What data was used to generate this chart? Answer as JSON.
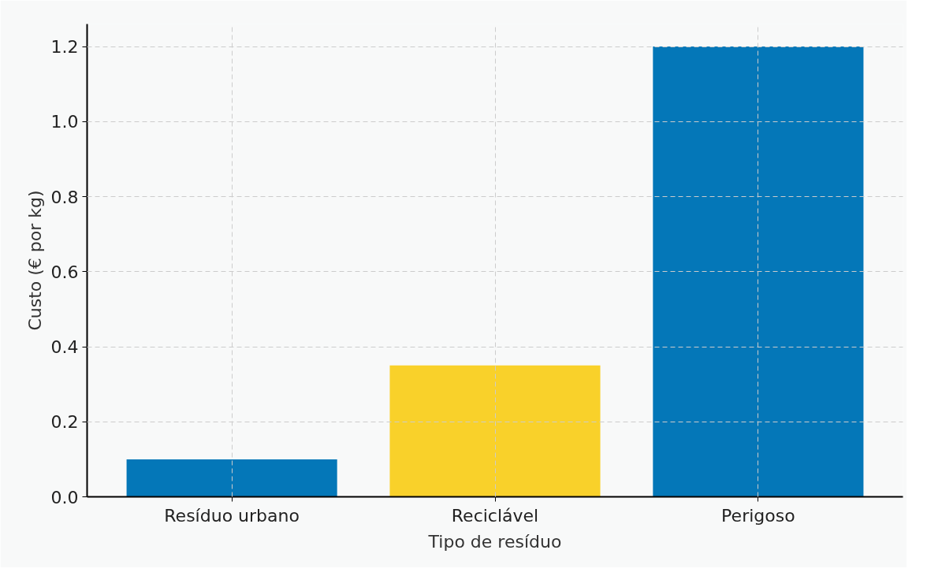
{
  "chart_data": {
    "type": "bar",
    "xlabel": "Tipo de resíduo",
    "ylabel": "Custo (€ por kg)",
    "categories": [
      "Resíduo urbano",
      "Reciclável",
      "Perigoso"
    ],
    "values": [
      0.1,
      0.35,
      1.2
    ],
    "colors": [
      "#0477b8",
      "#f9d12a",
      "#0477b8"
    ],
    "ylim": [
      0,
      1.26
    ],
    "yticks": [
      {
        "value": 0,
        "label": "0.0"
      },
      {
        "value": 0.2,
        "label": "0.2"
      },
      {
        "value": 0.4,
        "label": "0.4"
      },
      {
        "value": 0.6,
        "label": "0.6"
      },
      {
        "value": 0.8,
        "label": "0.8"
      },
      {
        "value": 1.0,
        "label": "1.0"
      },
      {
        "value": 1.2,
        "label": "1.2"
      }
    ],
    "grid": true
  }
}
